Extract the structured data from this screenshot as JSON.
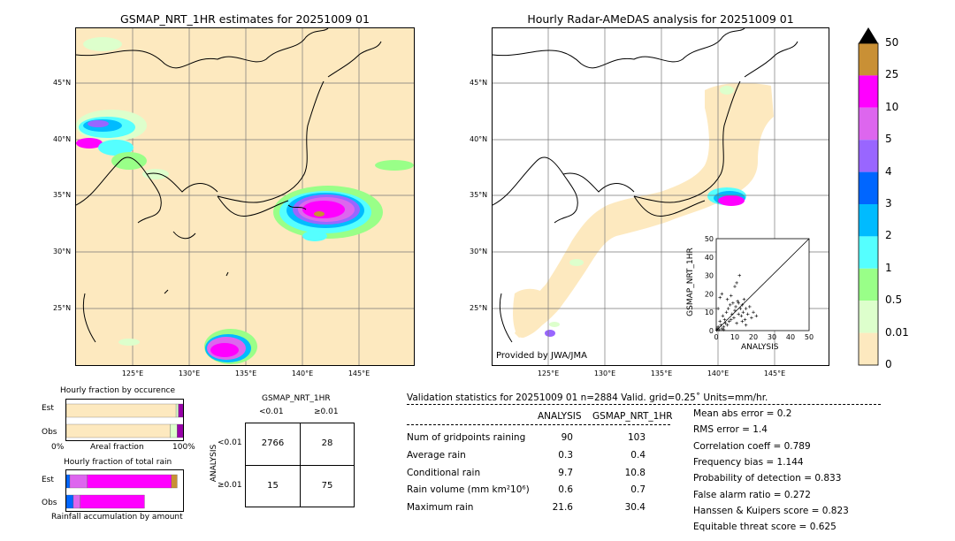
{
  "maps": {
    "left_title": "GSMAP_NRT_1HR estimates for 20251009 01",
    "right_title": "Hourly Radar-AMeDAS analysis for 20251009 01",
    "lat_labels": [
      "45°N",
      "40°N",
      "35°N",
      "30°N",
      "25°N"
    ],
    "lon_labels": [
      "125°E",
      "130°E",
      "135°E",
      "140°E",
      "145°E"
    ],
    "credit": "Provided by JWA/JMA"
  },
  "colorbar": {
    "labels": [
      "50",
      "25",
      "10",
      "5",
      "4",
      "3",
      "2",
      "1",
      "0.5",
      "0.01",
      "0"
    ],
    "colors": [
      "#c99035",
      "#ff00ff",
      "#dd66ee",
      "#9966ff",
      "#0066ff",
      "#00bbff",
      "#55ffff",
      "#99ff88",
      "#ddffcc",
      "#fde9bf"
    ]
  },
  "chart_data": [
    {
      "type": "bar",
      "title": "Hourly fraction by occurence",
      "categories": [
        "Est",
        "Obs"
      ],
      "xlabel": "Areal fraction",
      "tick_left": "0%",
      "tick_right": "100%",
      "series": [
        {
          "values": [
            0.94,
            0.89
          ]
        },
        {
          "values": [
            0.02,
            0.06
          ]
        },
        {
          "values": [
            0.04,
            0.05
          ]
        }
      ]
    },
    {
      "type": "bar",
      "title": "Hourly fraction of total rain",
      "categories": [
        "Est",
        "Obs"
      ],
      "xlabel": "Rainfall accumulation by amount",
      "series": [
        {
          "values": [
            0.03,
            0.06
          ]
        },
        {
          "values": [
            0.15,
            0.06
          ]
        },
        {
          "values": [
            0.72,
            0.55
          ]
        },
        {
          "values": [
            0.05,
            0.0
          ]
        }
      ]
    },
    {
      "type": "table",
      "title": "GSMAP_NRT_1HR",
      "col_headers": [
        "<0.01",
        "≥0.01"
      ],
      "row_axis": "ANALYSIS",
      "row_headers": [
        "<0.01",
        "≥0.01"
      ],
      "cells": [
        [
          "2766",
          "28"
        ],
        [
          "15",
          "75"
        ]
      ]
    },
    {
      "type": "scatter",
      "xlabel": "ANALYSIS",
      "ylabel": "GSMAP_NRT_1HR",
      "xlim": [
        0,
        50
      ],
      "ylim": [
        0,
        50
      ],
      "ticks": [
        "0",
        "10",
        "20",
        "30",
        "40",
        "50"
      ],
      "points": [
        [
          0.5,
          1
        ],
        [
          1,
          2
        ],
        [
          1.5,
          0.5
        ],
        [
          2,
          5
        ],
        [
          2.5,
          3
        ],
        [
          3,
          1
        ],
        [
          3.5,
          8
        ],
        [
          4,
          2
        ],
        [
          4.5,
          6
        ],
        [
          5,
          4
        ],
        [
          5.5,
          10
        ],
        [
          6,
          3
        ],
        [
          6.5,
          12
        ],
        [
          7,
          5
        ],
        [
          7.5,
          14
        ],
        [
          8,
          6
        ],
        [
          8.5,
          9
        ],
        [
          9,
          15
        ],
        [
          9.5,
          7
        ],
        [
          10,
          11
        ],
        [
          10.5,
          13
        ],
        [
          11,
          4
        ],
        [
          11.5,
          16
        ],
        [
          12,
          9
        ],
        [
          12.5,
          30
        ],
        [
          13,
          12
        ],
        [
          13.5,
          8
        ],
        [
          14,
          14
        ],
        [
          14.5,
          10
        ],
        [
          15,
          17
        ],
        [
          15.5,
          6
        ],
        [
          16,
          12
        ],
        [
          17,
          9
        ],
        [
          18,
          13
        ],
        [
          19,
          7
        ],
        [
          21.6,
          8
        ],
        [
          2,
          18
        ],
        [
          3,
          20
        ],
        [
          1,
          12
        ],
        [
          6,
          17
        ],
        [
          8,
          19
        ],
        [
          10,
          24
        ],
        [
          11,
          26
        ],
        [
          4,
          0.5
        ],
        [
          0.3,
          0.2
        ],
        [
          12,
          15
        ],
        [
          14,
          5
        ],
        [
          16,
          3
        ],
        [
          20,
          10
        ]
      ]
    }
  ],
  "validation": {
    "header": "Validation statistics for 20251009 01  n=2884 Valid. grid=0.25˚ Units=mm/hr.",
    "col_analysis": "ANALYSIS",
    "col_gsmap": "GSMAP_NRT_1HR",
    "rows": [
      {
        "label": "Num of gridpoints raining",
        "analysis": "90",
        "gsmap": "103"
      },
      {
        "label": "Average rain",
        "analysis": "0.3",
        "gsmap": "0.4"
      },
      {
        "label": "Conditional rain",
        "analysis": "9.7",
        "gsmap": "10.8"
      },
      {
        "label": "Rain volume (mm km²10⁶)",
        "analysis": "0.6",
        "gsmap": "0.7"
      },
      {
        "label": "Maximum rain",
        "analysis": "21.6",
        "gsmap": "30.4"
      }
    ],
    "scores": [
      "Mean abs error =    0.2",
      "RMS error =    1.4",
      "Correlation coeff =  0.789",
      "Frequency bias =  1.144",
      "Probability of detection =  0.833",
      "False alarm ratio =  0.272",
      "Hanssen & Kuipers score =  0.823",
      "Equitable threat score =  0.625"
    ]
  }
}
